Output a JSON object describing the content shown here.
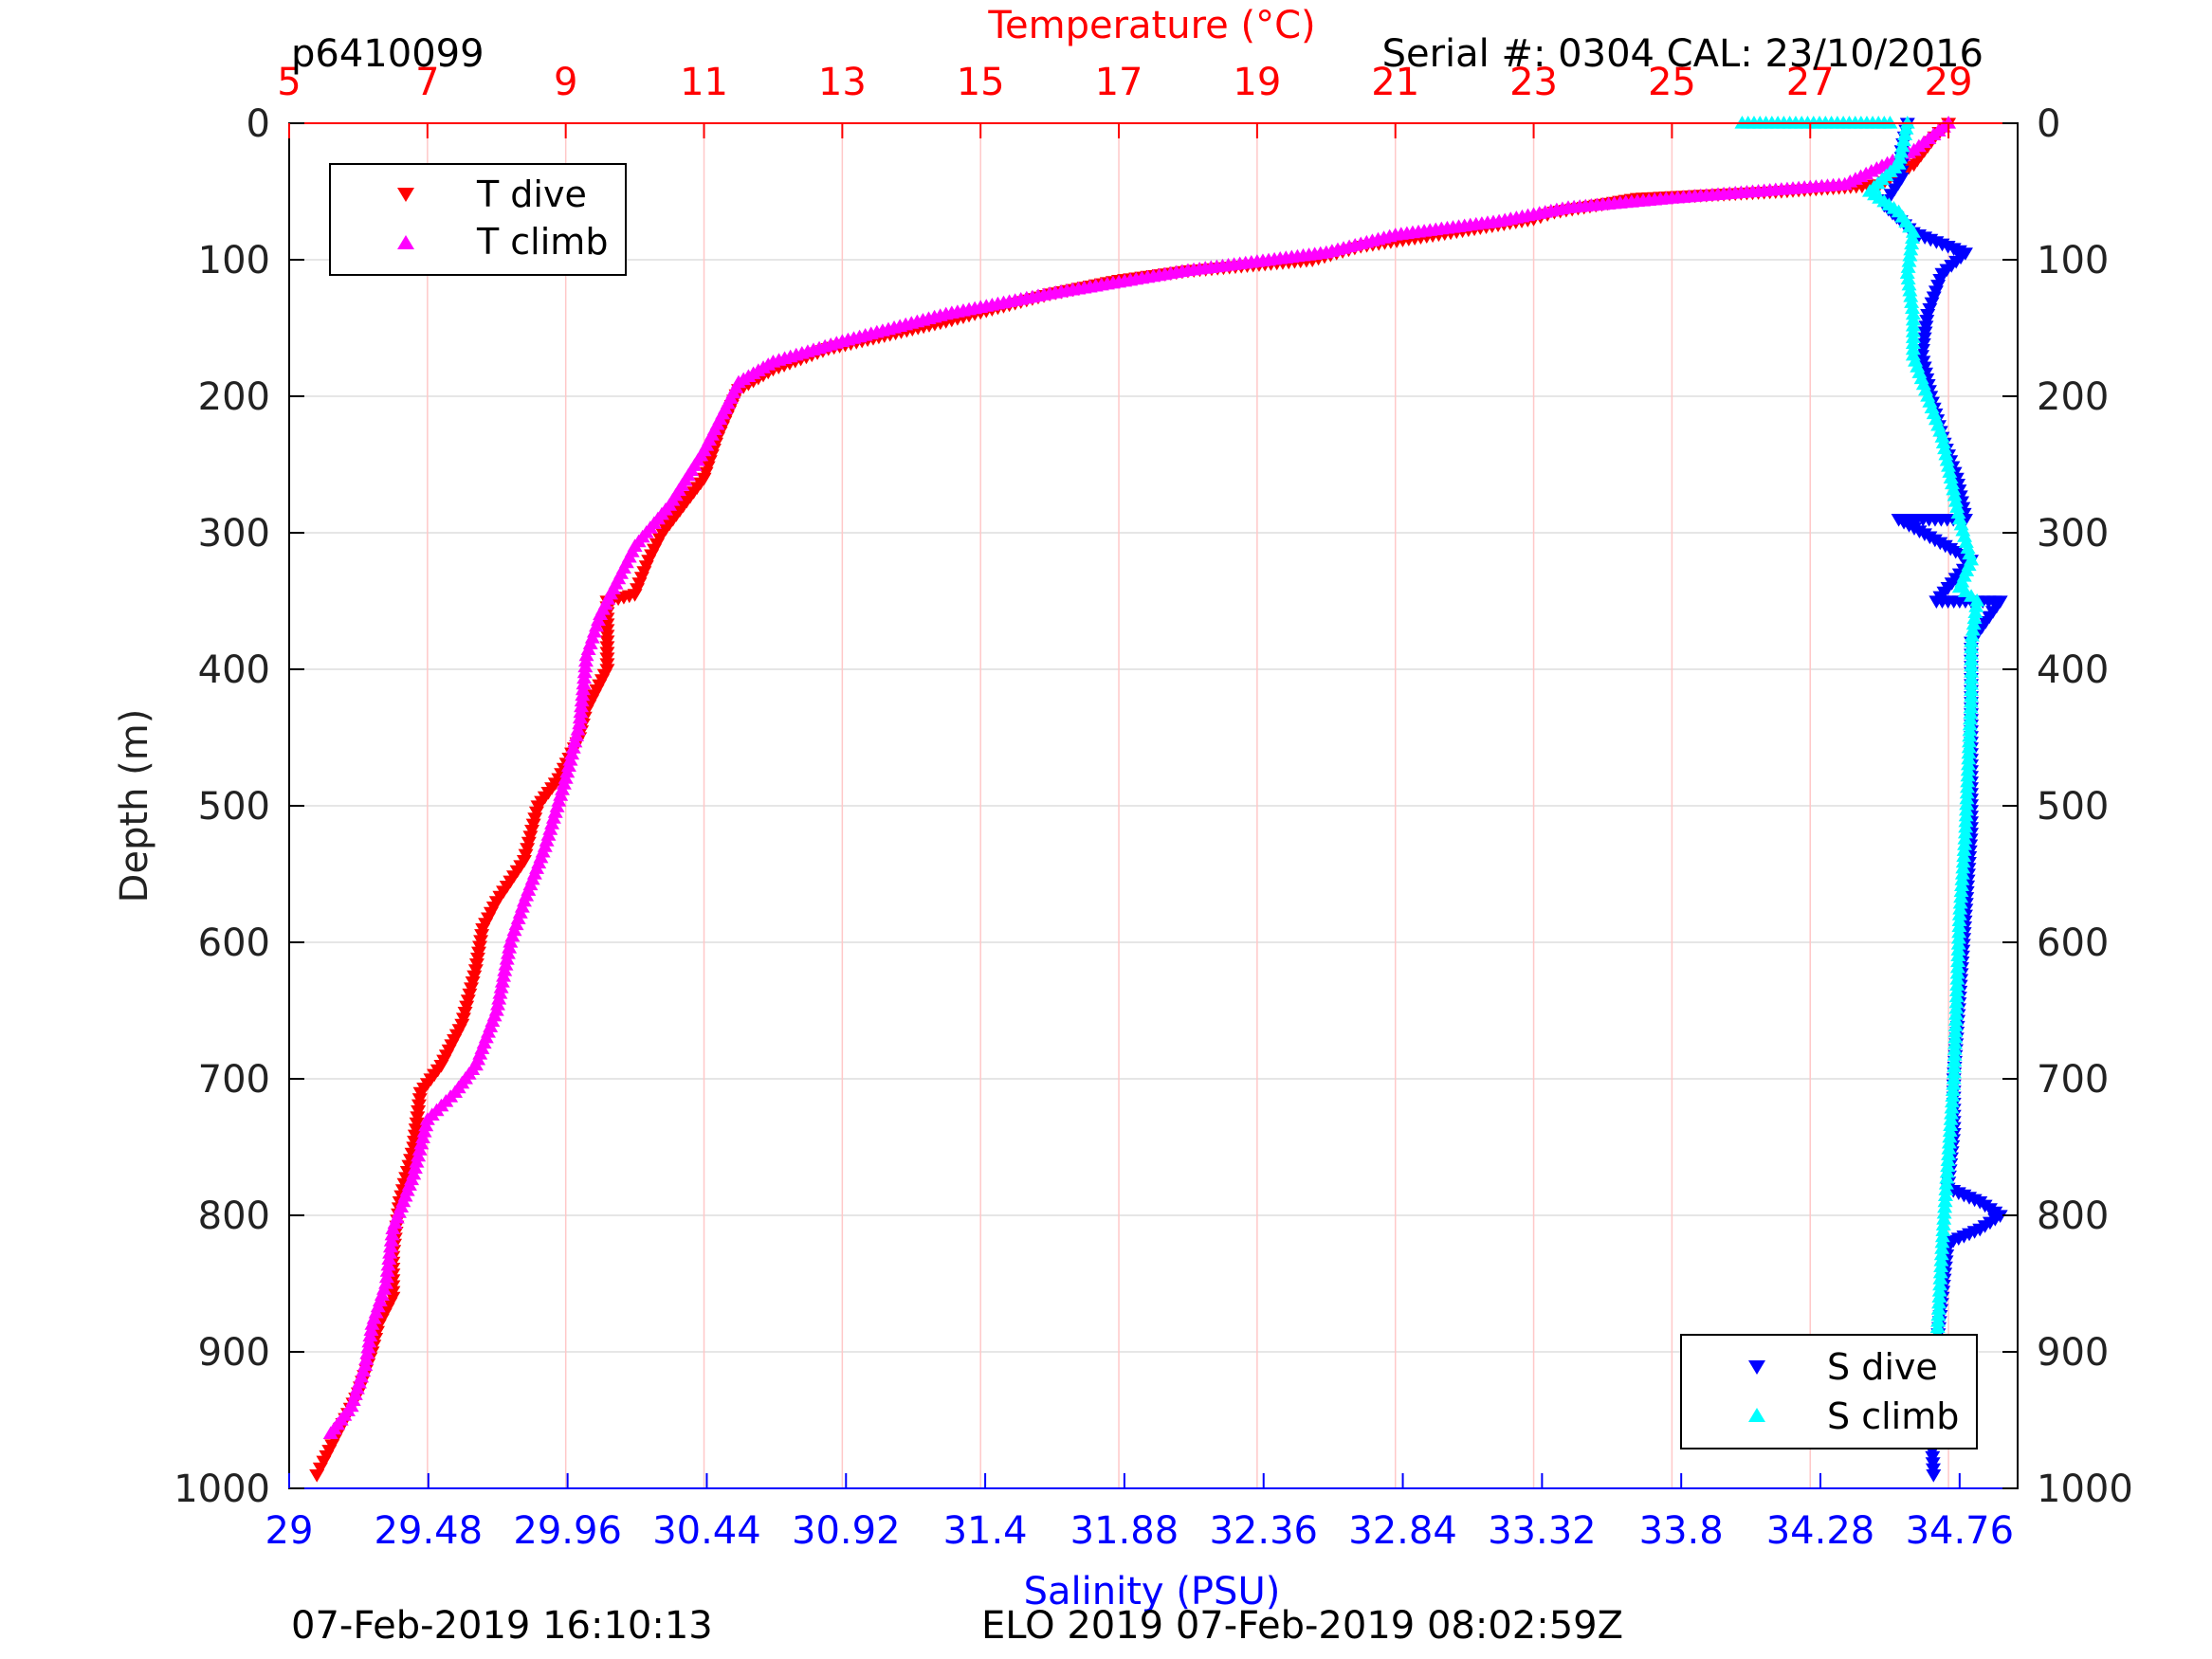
{
  "header": {
    "profile_id": "p6410099",
    "serial": "Serial #: 0304  CAL: 23/10/2016"
  },
  "footer": {
    "left_timestamp": "07-Feb-2019 16:10:13",
    "center_caption": "ELO 2019 07-Feb-2019 08:02:59Z"
  },
  "colors": {
    "t_dive": "#ff0000",
    "t_climb": "#ff00ff",
    "s_dive": "#0000ff",
    "s_climb": "#00ffff",
    "temperature_axis": "#ff0000",
    "salinity_axis": "#0000ff",
    "grid": "#dddddd",
    "temp_grid": "#ffc8c8"
  },
  "chart_data": {
    "type": "scatter",
    "ylabel": "Depth (m)",
    "y_reversed": true,
    "ylim": [
      0,
      1000
    ],
    "yticks": [
      "0",
      "100",
      "200",
      "300",
      "400",
      "500",
      "600",
      "700",
      "800",
      "900",
      "1000"
    ],
    "temperature_axis": {
      "label": "Temperature (°C)",
      "position": "top",
      "xlim": [
        5,
        30
      ],
      "ticks": [
        "5",
        "7",
        "9",
        "11",
        "13",
        "15",
        "17",
        "19",
        "21",
        "23",
        "25",
        "27",
        "29"
      ]
    },
    "salinity_axis": {
      "label": "Salinity (PSU)",
      "position": "bottom",
      "xlim": [
        29,
        34.96
      ],
      "ticks": [
        "29",
        "29.48",
        "29.96",
        "30.44",
        "30.92",
        "31.4",
        "31.88",
        "32.36",
        "32.84",
        "33.32",
        "33.8",
        "34.28",
        "34.76"
      ]
    },
    "legend_temperature": {
      "placement": "top-left",
      "entries": [
        "T dive",
        "T climb"
      ]
    },
    "legend_salinity": {
      "placement": "bottom-right",
      "entries": [
        "S dive",
        "S climb"
      ]
    },
    "series": [
      {
        "name": "T dive",
        "axis": "temperature",
        "marker": "triangle-down",
        "points": [
          [
            29.0,
            0
          ],
          [
            28.8,
            10
          ],
          [
            28.5,
            30
          ],
          [
            28.0,
            45
          ],
          [
            26.5,
            50
          ],
          [
            24.5,
            55
          ],
          [
            23.3,
            65
          ],
          [
            23.0,
            70
          ],
          [
            21.8,
            80
          ],
          [
            20.5,
            90
          ],
          [
            19.8,
            100
          ],
          [
            18.0,
            108
          ],
          [
            17.0,
            115
          ],
          [
            16.0,
            125
          ],
          [
            14.5,
            145
          ],
          [
            12.8,
            165
          ],
          [
            12.0,
            180
          ],
          [
            11.5,
            195
          ],
          [
            11.2,
            230
          ],
          [
            11.0,
            260
          ],
          [
            10.7,
            280
          ],
          [
            10.4,
            300
          ],
          [
            10.2,
            320
          ],
          [
            10.0,
            345
          ],
          [
            9.6,
            350
          ],
          [
            9.6,
            400
          ],
          [
            9.3,
            430
          ],
          [
            9.2,
            450
          ],
          [
            8.9,
            480
          ],
          [
            8.6,
            500
          ],
          [
            8.4,
            540
          ],
          [
            8.0,
            570
          ],
          [
            7.8,
            590
          ],
          [
            7.7,
            620
          ],
          [
            7.5,
            660
          ],
          [
            7.2,
            690
          ],
          [
            6.9,
            710
          ],
          [
            6.8,
            750
          ],
          [
            6.6,
            790
          ],
          [
            6.5,
            830
          ],
          [
            6.5,
            860
          ],
          [
            6.3,
            880
          ],
          [
            6.2,
            900
          ],
          [
            6.0,
            930
          ],
          [
            5.7,
            960
          ],
          [
            5.5,
            980
          ],
          [
            5.4,
            990
          ]
        ]
      },
      {
        "name": "T climb",
        "axis": "temperature",
        "marker": "triangle-up",
        "points": [
          [
            29.0,
            0
          ],
          [
            28.5,
            20
          ],
          [
            27.5,
            45
          ],
          [
            25.0,
            55
          ],
          [
            23.5,
            62
          ],
          [
            22.5,
            72
          ],
          [
            21.0,
            82
          ],
          [
            20.0,
            95
          ],
          [
            18.0,
            108
          ],
          [
            16.0,
            125
          ],
          [
            14.5,
            140
          ],
          [
            13.0,
            160
          ],
          [
            12.0,
            175
          ],
          [
            11.5,
            190
          ],
          [
            11.0,
            240
          ],
          [
            10.5,
            280
          ],
          [
            10.0,
            310
          ],
          [
            9.8,
            330
          ],
          [
            9.5,
            360
          ],
          [
            9.3,
            390
          ],
          [
            9.2,
            440
          ],
          [
            9.0,
            480
          ],
          [
            8.7,
            530
          ],
          [
            8.4,
            570
          ],
          [
            8.2,
            600
          ],
          [
            8.0,
            650
          ],
          [
            7.7,
            690
          ],
          [
            7.4,
            710
          ],
          [
            7.0,
            730
          ],
          [
            6.8,
            770
          ],
          [
            6.5,
            810
          ],
          [
            6.4,
            850
          ],
          [
            6.2,
            880
          ],
          [
            6.1,
            910
          ],
          [
            5.9,
            940
          ],
          [
            5.6,
            960
          ]
        ]
      },
      {
        "name": "S dive",
        "axis": "salinity",
        "marker": "triangle-down",
        "points": [
          [
            34.58,
            0
          ],
          [
            34.56,
            20
          ],
          [
            34.56,
            40
          ],
          [
            34.5,
            60
          ],
          [
            34.6,
            80
          ],
          [
            34.78,
            95
          ],
          [
            34.7,
            110
          ],
          [
            34.65,
            140
          ],
          [
            34.63,
            170
          ],
          [
            34.66,
            200
          ],
          [
            34.7,
            230
          ],
          [
            34.75,
            260
          ],
          [
            34.78,
            290
          ],
          [
            34.55,
            290
          ],
          [
            34.8,
            320
          ],
          [
            34.68,
            350
          ],
          [
            34.9,
            350
          ],
          [
            34.8,
            380
          ],
          [
            34.8,
            420
          ],
          [
            34.8,
            470
          ],
          [
            34.8,
            520
          ],
          [
            34.78,
            580
          ],
          [
            34.76,
            640
          ],
          [
            34.74,
            700
          ],
          [
            34.74,
            740
          ],
          [
            34.72,
            780
          ],
          [
            34.83,
            790
          ],
          [
            34.9,
            800
          ],
          [
            34.83,
            810
          ],
          [
            34.72,
            820
          ],
          [
            34.7,
            860
          ],
          [
            34.68,
            900
          ],
          [
            34.66,
            950
          ],
          [
            34.67,
            990
          ]
        ]
      },
      {
        "name": "S climb",
        "axis": "salinity",
        "marker": "triangle-up",
        "points": [
          [
            34.58,
            0
          ],
          [
            34.55,
            30
          ],
          [
            34.45,
            50
          ],
          [
            34.55,
            65
          ],
          [
            34.6,
            80
          ],
          [
            34.58,
            110
          ],
          [
            34.6,
            140
          ],
          [
            34.6,
            170
          ],
          [
            34.65,
            200
          ],
          [
            34.7,
            230
          ],
          [
            34.73,
            260
          ],
          [
            34.76,
            290
          ],
          [
            34.8,
            320
          ],
          [
            34.76,
            340
          ],
          [
            34.82,
            350
          ],
          [
            34.8,
            380
          ],
          [
            34.8,
            420
          ],
          [
            34.79,
            470
          ],
          [
            34.78,
            520
          ],
          [
            34.76,
            580
          ],
          [
            34.75,
            640
          ],
          [
            34.74,
            700
          ],
          [
            34.72,
            760
          ],
          [
            34.7,
            820
          ],
          [
            34.69,
            860
          ],
          [
            34.68,
            900
          ],
          [
            34.67,
            940
          ],
          [
            34.01,
            0
          ],
          [
            34.4,
            0
          ],
          [
            34.52,
            0
          ]
        ]
      }
    ]
  }
}
